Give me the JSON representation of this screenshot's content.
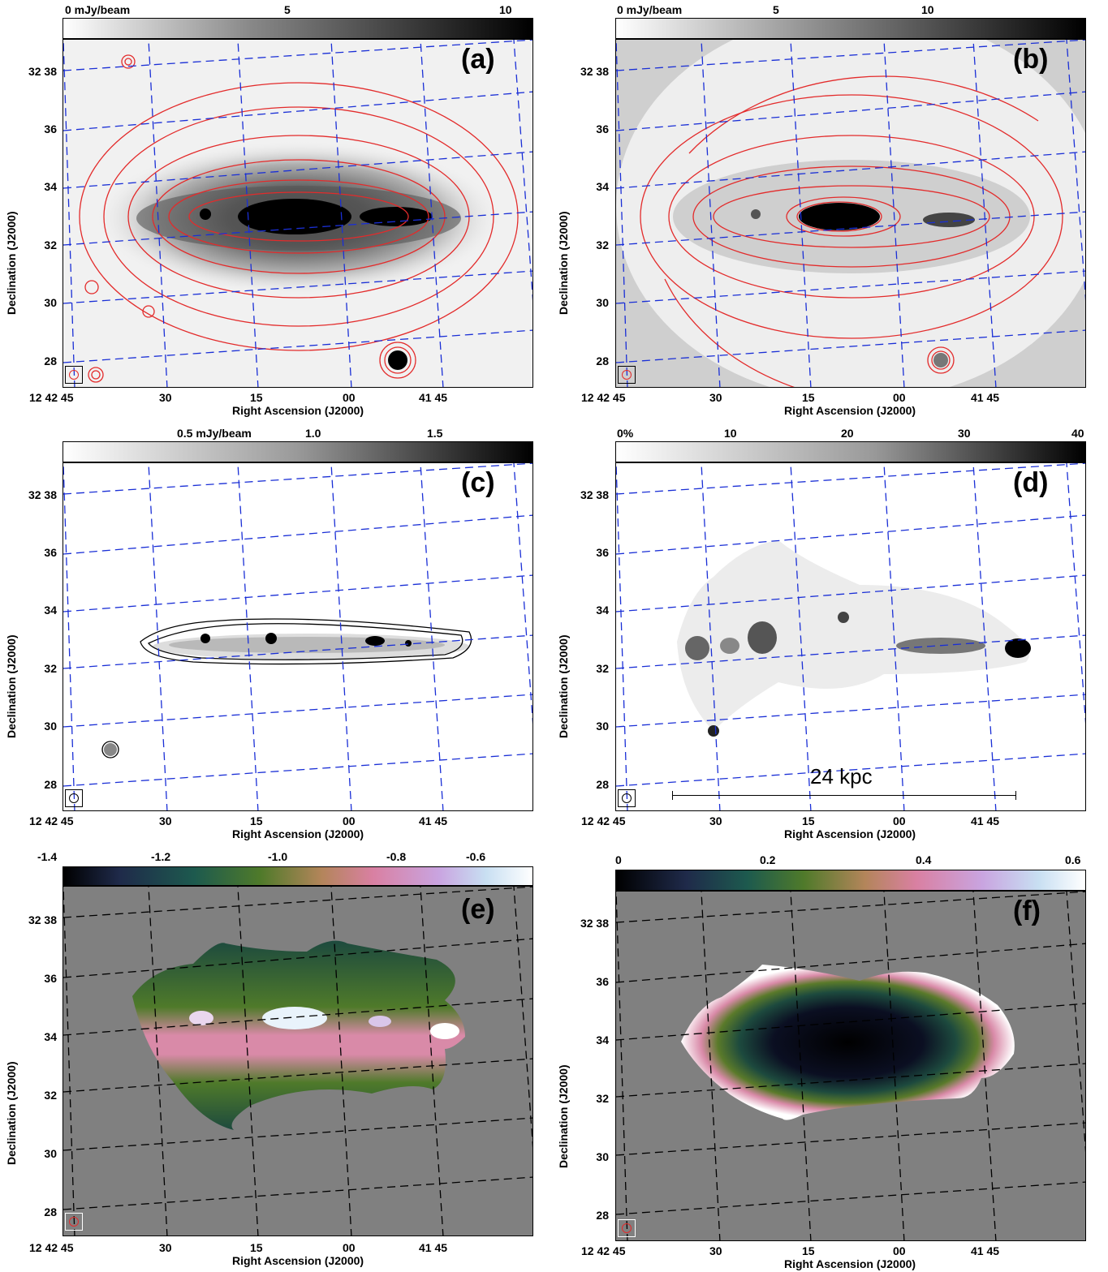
{
  "panels": [
    {
      "id": "a",
      "label": "(a)",
      "colorbar": {
        "ticks": [
          "0 mJy/beam",
          "5",
          "10"
        ]
      }
    },
    {
      "id": "b",
      "label": "(b)",
      "colorbar": {
        "ticks": [
          "0 mJy/beam",
          "5",
          "10"
        ]
      }
    },
    {
      "id": "c",
      "label": "(c)",
      "colorbar": {
        "ticks": [
          "0.5 mJy/beam",
          "1.0",
          "1.5"
        ]
      }
    },
    {
      "id": "d",
      "label": "(d)",
      "colorbar": {
        "ticks": [
          "0%",
          "10",
          "20",
          "30",
          "40"
        ]
      },
      "scalebar": "24 kpc"
    },
    {
      "id": "e",
      "label": "(e)",
      "colorbar": {
        "ticks": [
          "-1.4",
          "-1.2",
          "-1.0",
          "-0.8",
          "-0.6"
        ]
      }
    },
    {
      "id": "f",
      "label": "(f)",
      "colorbar": {
        "ticks": [
          "0",
          "0.2",
          "0.4",
          "0.6"
        ]
      }
    }
  ],
  "axes": {
    "xlabel": "Right Ascension (J2000)",
    "ylabel": "Declination (J2000)",
    "xticks": [
      "12 42 45",
      "30",
      "15",
      "00",
      "41 45"
    ],
    "yticks": [
      "32 38",
      "36",
      "34",
      "32",
      "30",
      "28"
    ]
  },
  "colors": {
    "contour": "#e32b2b",
    "grid_blue": "#1a2fd6",
    "grid_black": "#000000",
    "background_gray": "#808080"
  }
}
